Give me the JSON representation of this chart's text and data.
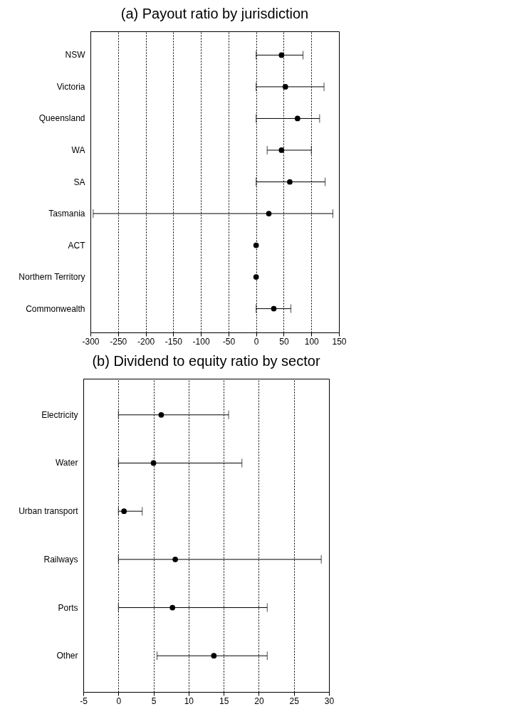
{
  "chart_data": [
    {
      "type": "scatter",
      "title": "(a) Payout ratio by jurisdiction",
      "orientation": "horizontal",
      "categories": [
        "NSW",
        "Victoria",
        "Queensland",
        "WA",
        "SA",
        "Tasmania",
        "ACT",
        "Northern Territory",
        "Commonwealth"
      ],
      "series": [
        {
          "color": "#000000",
          "values": [
            46,
            53,
            75,
            46,
            61,
            23,
            0,
            0,
            32
          ],
          "errors": [
            [
              0,
              85
            ],
            [
              0,
              123
            ],
            [
              0,
              115
            ],
            [
              20,
              100
            ],
            [
              0,
              125
            ],
            [
              -295,
              139
            ],
            null,
            null,
            [
              0,
              63
            ]
          ]
        }
      ],
      "xlim": [
        -300,
        150
      ],
      "xticks": [
        -300,
        -250,
        -200,
        -150,
        -100,
        -50,
        0,
        50,
        100,
        150
      ],
      "grid": "x",
      "marker": "circle"
    },
    {
      "type": "scatter",
      "title": "(b) Dividend to equity ratio by sector",
      "orientation": "horizontal",
      "categories": [
        "Electricity",
        "Water",
        "Urban transport",
        "Railways",
        "Ports",
        "Other"
      ],
      "series": [
        {
          "color": "#000000",
          "values": [
            6.1,
            5.0,
            0.8,
            8.1,
            7.7,
            13.6
          ],
          "errors": [
            [
              0,
              15.7
            ],
            [
              0,
              17.6
            ],
            [
              0,
              3.4
            ],
            [
              0,
              28.9
            ],
            [
              0,
              21.2
            ],
            [
              5.5,
              21.2
            ]
          ]
        }
      ],
      "xlim": [
        -5,
        30
      ],
      "xticks": [
        -5,
        0,
        5,
        10,
        15,
        20,
        25,
        30
      ],
      "grid": "x",
      "marker": "circle"
    }
  ]
}
